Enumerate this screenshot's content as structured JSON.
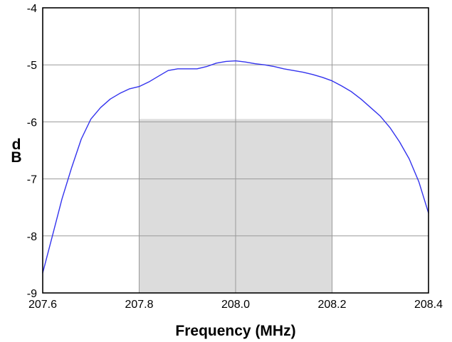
{
  "chart_data": {
    "type": "line",
    "title": "",
    "xlabel": "Frequency (MHz)",
    "ylabel": "dB",
    "xlim": [
      207.6,
      208.4
    ],
    "ylim": [
      -9,
      -4
    ],
    "x_ticks": [
      "207.6",
      "207.8",
      "208.0",
      "208.2",
      "208.4"
    ],
    "y_ticks": [
      "-9",
      "-8",
      "-7",
      "-6",
      "-5",
      "-4"
    ],
    "grid": true,
    "legend": "none",
    "shaded_region": {
      "x": [
        207.8,
        208.2
      ],
      "y": [
        -9,
        -5.95
      ],
      "color": "#dcdcdc"
    },
    "series": [
      {
        "color": "#3333ee",
        "x": [
          207.6,
          207.62,
          207.64,
          207.66,
          207.68,
          207.7,
          207.72,
          207.74,
          207.76,
          207.78,
          207.8,
          207.82,
          207.84,
          207.86,
          207.88,
          207.9,
          207.92,
          207.94,
          207.96,
          207.98,
          208.0,
          208.02,
          208.04,
          208.06,
          208.08,
          208.1,
          208.12,
          208.14,
          208.16,
          208.18,
          208.2,
          208.22,
          208.24,
          208.26,
          208.28,
          208.3,
          208.32,
          208.34,
          208.36,
          208.38,
          208.4
        ],
        "y": [
          -8.65,
          -8.0,
          -7.35,
          -6.8,
          -6.3,
          -5.95,
          -5.75,
          -5.6,
          -5.5,
          -5.42,
          -5.38,
          -5.3,
          -5.2,
          -5.1,
          -5.07,
          -5.07,
          -5.07,
          -5.03,
          -4.97,
          -4.94,
          -4.93,
          -4.95,
          -4.98,
          -5.0,
          -5.03,
          -5.07,
          -5.1,
          -5.13,
          -5.17,
          -5.22,
          -5.28,
          -5.37,
          -5.47,
          -5.6,
          -5.75,
          -5.9,
          -6.1,
          -6.35,
          -6.65,
          -7.05,
          -7.6
        ]
      }
    ]
  }
}
